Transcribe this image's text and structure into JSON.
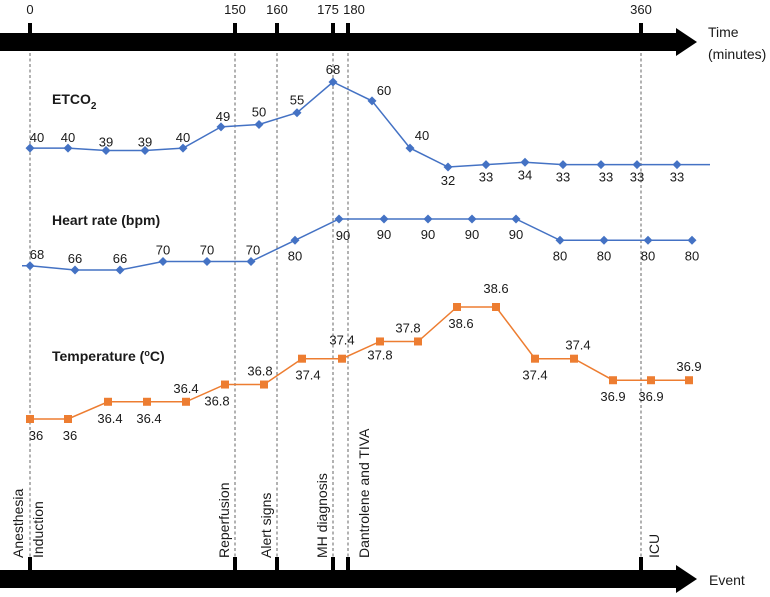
{
  "chart_data": {
    "type": "line",
    "time_axis": {
      "title_line1": "Time",
      "title_line2": "(minutes)",
      "ticks": [
        "0",
        "150",
        "160",
        "175",
        "180",
        "360"
      ]
    },
    "event_axis": {
      "title": "Event",
      "events": [
        "Anesthesia",
        "Induction",
        "Reperfusion",
        "Alert signs",
        "MH diagnosis",
        "Dantrolene and TIVA",
        "ICU"
      ]
    },
    "series": [
      {
        "name": "ETCO2",
        "label_main": "ETCO",
        "label_sub": "2",
        "color": "#4472c4",
        "marker": "diamond",
        "values": [
          40,
          40,
          39,
          39,
          40,
          49,
          50,
          55,
          68,
          60,
          40,
          32,
          33,
          34,
          33,
          33,
          33,
          33
        ],
        "labels": [
          "40",
          "40",
          "39",
          "39",
          "40",
          "49",
          "50",
          "55",
          "68",
          "60",
          "40",
          "32",
          "33",
          "34",
          "33",
          "33",
          "33",
          "33"
        ]
      },
      {
        "name": "Heart rate (bpm)",
        "label_main": "Heart rate (bpm)",
        "color": "#4472c4",
        "marker": "diamond",
        "values": [
          68,
          66,
          66,
          70,
          70,
          70,
          80,
          90,
          90,
          90,
          90,
          90,
          80,
          80,
          80,
          80
        ],
        "labels": [
          "68",
          "66",
          "66",
          "70",
          "70",
          "70",
          "80",
          "90",
          "90",
          "90",
          "90",
          "90",
          "80",
          "80",
          "80",
          "80"
        ]
      },
      {
        "name": "Temperature (oC)",
        "label_main": "Temperature (",
        "label_sup": "o",
        "label_end": "C)",
        "color": "#ed7d31",
        "marker": "square",
        "values": [
          36,
          36,
          36.4,
          36.4,
          36.4,
          36.8,
          36.8,
          37.4,
          37.4,
          37.8,
          37.8,
          38.6,
          38.6,
          37.4,
          37.4,
          36.9,
          36.9,
          36.9
        ],
        "labels": [
          "36",
          "36",
          "36.4",
          "36.4",
          "36.4",
          "36.8",
          "36.8",
          "37.4",
          "37.4",
          "37.8",
          "37.8",
          "38.6",
          "38.6",
          "37.4",
          "37.4",
          "36.9",
          "36.9",
          "36.9"
        ]
      }
    ]
  }
}
